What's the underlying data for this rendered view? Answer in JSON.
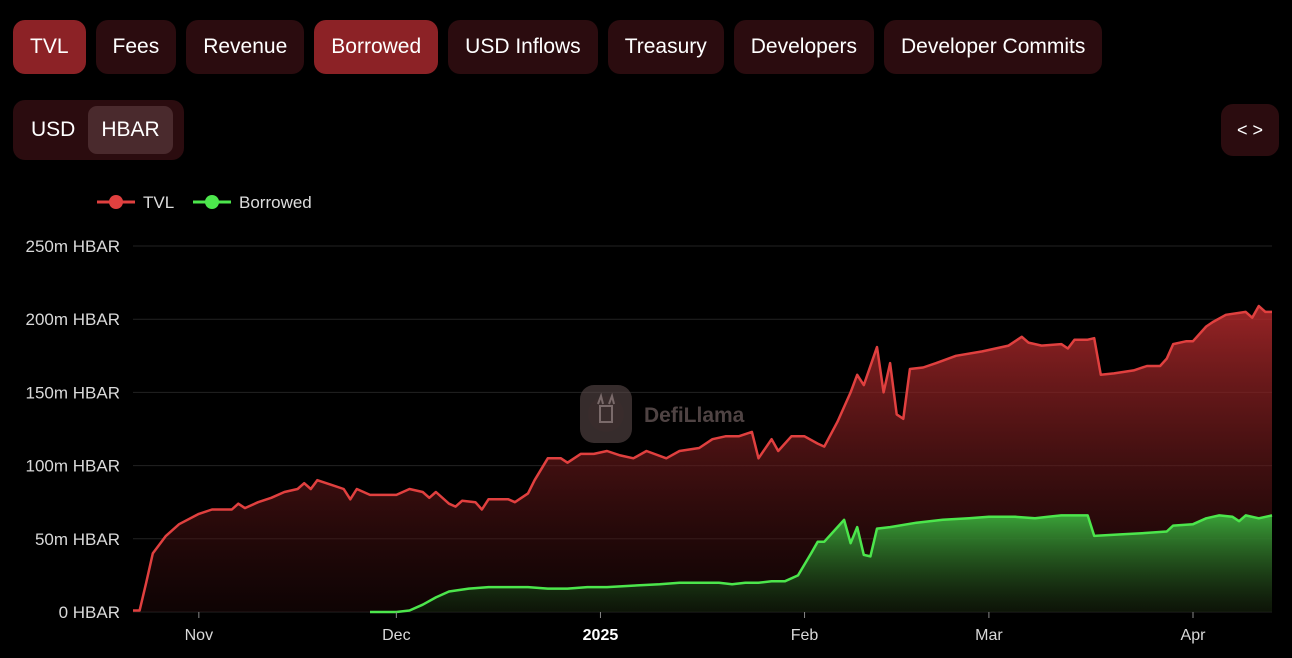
{
  "tabs": [
    {
      "label": "TVL",
      "active": true
    },
    {
      "label": "Fees",
      "active": false
    },
    {
      "label": "Revenue",
      "active": false
    },
    {
      "label": "Borrowed",
      "active": true
    },
    {
      "label": "USD Inflows",
      "active": false
    },
    {
      "label": "Treasury",
      "active": false
    },
    {
      "label": "Developers",
      "active": false
    },
    {
      "label": "Developer Commits",
      "active": false
    }
  ],
  "unit_toggle": {
    "usd": "USD",
    "hbar": "HBAR",
    "selected": "HBAR"
  },
  "embed_icon": "code-brackets-icon",
  "watermark": "DefiLlama",
  "colors": {
    "tvl": "#e0403f",
    "borrowed": "#4ce64c",
    "active_tab": "#8c2226",
    "tab": "#2b0c0f"
  },
  "chart_data": {
    "type": "area",
    "legend": [
      "TVL",
      "Borrowed"
    ],
    "legend_position": "top-left",
    "grid": true,
    "ylim": [
      0,
      250
    ],
    "y_ticks": [
      {
        "value": 0,
        "label": "0 HBAR"
      },
      {
        "value": 50,
        "label": "50m HBAR"
      },
      {
        "value": 100,
        "label": "100m HBAR"
      },
      {
        "value": 150,
        "label": "150m HBAR"
      },
      {
        "value": 200,
        "label": "200m HBAR"
      },
      {
        "value": 250,
        "label": "250m HBAR"
      }
    ],
    "x_ticks": [
      {
        "date": "2024-11-01",
        "label": "Nov",
        "bold": false
      },
      {
        "date": "2024-12-01",
        "label": "Dec",
        "bold": false
      },
      {
        "date": "2025-01-01",
        "label": "2025",
        "bold": true
      },
      {
        "date": "2025-02-01",
        "label": "Feb",
        "bold": false
      },
      {
        "date": "2025-03-01",
        "label": "Mar",
        "bold": false
      },
      {
        "date": "2025-04-01",
        "label": "Apr",
        "bold": false
      }
    ],
    "xlim": [
      "2024-10-22",
      "2025-04-13"
    ],
    "series": [
      {
        "name": "TVL",
        "points": [
          [
            "2024-10-22",
            1
          ],
          [
            "2024-10-23",
            1
          ],
          [
            "2024-10-24",
            20
          ],
          [
            "2024-10-25",
            40
          ],
          [
            "2024-10-27",
            52
          ],
          [
            "2024-10-29",
            60
          ],
          [
            "2024-11-01",
            67
          ],
          [
            "2024-11-03",
            70
          ],
          [
            "2024-11-06",
            70
          ],
          [
            "2024-11-07",
            74
          ],
          [
            "2024-11-08",
            71
          ],
          [
            "2024-11-10",
            75
          ],
          [
            "2024-11-12",
            78
          ],
          [
            "2024-11-14",
            82
          ],
          [
            "2024-11-16",
            84
          ],
          [
            "2024-11-17",
            88
          ],
          [
            "2024-11-18",
            84
          ],
          [
            "2024-11-19",
            90
          ],
          [
            "2024-11-21",
            87
          ],
          [
            "2024-11-23",
            84
          ],
          [
            "2024-11-24",
            77
          ],
          [
            "2024-11-25",
            84
          ],
          [
            "2024-11-27",
            80
          ],
          [
            "2024-12-01",
            80
          ],
          [
            "2024-12-03",
            84
          ],
          [
            "2024-12-05",
            82
          ],
          [
            "2024-12-06",
            78
          ],
          [
            "2024-12-07",
            82
          ],
          [
            "2024-12-09",
            74
          ],
          [
            "2024-12-10",
            72
          ],
          [
            "2024-12-11",
            76
          ],
          [
            "2024-12-13",
            75
          ],
          [
            "2024-12-14",
            70
          ],
          [
            "2024-12-15",
            77
          ],
          [
            "2024-12-18",
            77
          ],
          [
            "2024-12-19",
            75
          ],
          [
            "2024-12-21",
            81
          ],
          [
            "2024-12-22",
            90
          ],
          [
            "2024-12-24",
            105
          ],
          [
            "2024-12-26",
            105
          ],
          [
            "2024-12-27",
            102
          ],
          [
            "2024-12-29",
            108
          ],
          [
            "2024-12-31",
            108
          ],
          [
            "2025-01-02",
            110
          ],
          [
            "2025-01-04",
            107
          ],
          [
            "2025-01-06",
            105
          ],
          [
            "2025-01-08",
            110
          ],
          [
            "2025-01-11",
            105
          ],
          [
            "2025-01-13",
            110
          ],
          [
            "2025-01-16",
            112
          ],
          [
            "2025-01-18",
            118
          ],
          [
            "2025-01-20",
            120
          ],
          [
            "2025-01-22",
            120
          ],
          [
            "2025-01-24",
            123
          ],
          [
            "2025-01-25",
            105
          ],
          [
            "2025-01-27",
            118
          ],
          [
            "2025-01-28",
            110
          ],
          [
            "2025-01-30",
            120
          ],
          [
            "2025-02-01",
            120
          ],
          [
            "2025-02-03",
            115
          ],
          [
            "2025-02-04",
            113
          ],
          [
            "2025-02-06",
            130
          ],
          [
            "2025-02-08",
            150
          ],
          [
            "2025-02-09",
            162
          ],
          [
            "2025-02-10",
            155
          ],
          [
            "2025-02-12",
            181
          ],
          [
            "2025-02-13",
            150
          ],
          [
            "2025-02-14",
            170
          ],
          [
            "2025-02-15",
            135
          ],
          [
            "2025-02-16",
            132
          ],
          [
            "2025-02-17",
            166
          ],
          [
            "2025-02-19",
            167
          ],
          [
            "2025-02-21",
            170
          ],
          [
            "2025-02-24",
            175
          ],
          [
            "2025-02-28",
            178
          ],
          [
            "2025-03-04",
            182
          ],
          [
            "2025-03-06",
            188
          ],
          [
            "2025-03-07",
            184
          ],
          [
            "2025-03-09",
            182
          ],
          [
            "2025-03-12",
            183
          ],
          [
            "2025-03-13",
            180
          ],
          [
            "2025-03-14",
            186
          ],
          [
            "2025-03-16",
            186
          ],
          [
            "2025-03-17",
            187
          ],
          [
            "2025-03-18",
            162
          ],
          [
            "2025-03-20",
            163
          ],
          [
            "2025-03-23",
            165
          ],
          [
            "2025-03-25",
            168
          ],
          [
            "2025-03-27",
            168
          ],
          [
            "2025-03-28",
            173
          ],
          [
            "2025-03-29",
            183
          ],
          [
            "2025-03-31",
            185
          ],
          [
            "2025-04-01",
            185
          ],
          [
            "2025-04-02",
            190
          ],
          [
            "2025-04-03",
            195
          ],
          [
            "2025-04-04",
            198
          ],
          [
            "2025-04-06",
            203
          ],
          [
            "2025-04-09",
            205
          ],
          [
            "2025-04-10",
            201
          ],
          [
            "2025-04-11",
            209
          ],
          [
            "2025-04-12",
            205
          ],
          [
            "2025-04-13",
            205
          ]
        ]
      },
      {
        "name": "Borrowed",
        "points": [
          [
            "2024-11-27",
            0
          ],
          [
            "2024-11-28",
            0
          ],
          [
            "2024-12-01",
            0
          ],
          [
            "2024-12-03",
            1
          ],
          [
            "2024-12-05",
            5
          ],
          [
            "2024-12-07",
            10
          ],
          [
            "2024-12-09",
            14
          ],
          [
            "2024-12-12",
            16
          ],
          [
            "2024-12-15",
            17
          ],
          [
            "2024-12-18",
            17
          ],
          [
            "2024-12-21",
            17
          ],
          [
            "2024-12-24",
            16
          ],
          [
            "2024-12-27",
            16
          ],
          [
            "2024-12-30",
            17
          ],
          [
            "2025-01-02",
            17
          ],
          [
            "2025-01-06",
            18
          ],
          [
            "2025-01-10",
            19
          ],
          [
            "2025-01-13",
            20
          ],
          [
            "2025-01-16",
            20
          ],
          [
            "2025-01-19",
            20
          ],
          [
            "2025-01-21",
            19
          ],
          [
            "2025-01-23",
            20
          ],
          [
            "2025-01-25",
            20
          ],
          [
            "2025-01-27",
            21
          ],
          [
            "2025-01-29",
            21
          ],
          [
            "2025-01-31",
            25
          ],
          [
            "2025-02-02",
            40
          ],
          [
            "2025-02-03",
            48
          ],
          [
            "2025-02-04",
            48
          ],
          [
            "2025-02-06",
            58
          ],
          [
            "2025-02-07",
            63
          ],
          [
            "2025-02-08",
            47
          ],
          [
            "2025-02-09",
            58
          ],
          [
            "2025-02-10",
            39
          ],
          [
            "2025-02-11",
            38
          ],
          [
            "2025-02-12",
            57
          ],
          [
            "2025-02-14",
            58
          ],
          [
            "2025-02-18",
            61
          ],
          [
            "2025-02-22",
            63
          ],
          [
            "2025-02-26",
            64
          ],
          [
            "2025-03-01",
            65
          ],
          [
            "2025-03-05",
            65
          ],
          [
            "2025-03-08",
            64
          ],
          [
            "2025-03-10",
            65
          ],
          [
            "2025-03-12",
            66
          ],
          [
            "2025-03-15",
            66
          ],
          [
            "2025-03-16",
            66
          ],
          [
            "2025-03-17",
            52
          ],
          [
            "2025-03-21",
            53
          ],
          [
            "2025-03-25",
            54
          ],
          [
            "2025-03-28",
            55
          ],
          [
            "2025-03-29",
            59
          ],
          [
            "2025-04-01",
            60
          ],
          [
            "2025-04-03",
            64
          ],
          [
            "2025-04-05",
            66
          ],
          [
            "2025-04-07",
            65
          ],
          [
            "2025-04-08",
            62
          ],
          [
            "2025-04-09",
            66
          ],
          [
            "2025-04-11",
            64
          ],
          [
            "2025-04-13",
            66
          ]
        ]
      }
    ]
  }
}
